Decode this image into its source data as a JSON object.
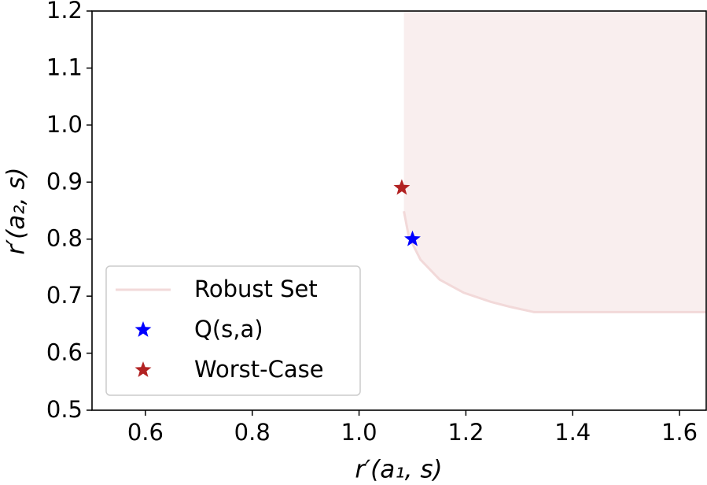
{
  "chart_data": {
    "type": "scatter",
    "xlabel": "r′(a₁, s)",
    "ylabel": "r′(a₂, s)",
    "xlim": [
      0.5,
      1.65
    ],
    "ylim": [
      0.5,
      1.2
    ],
    "xticks": [
      0.6,
      0.8,
      {
        "value": 1,
        "label": "1.0"
      },
      1.2,
      1.4,
      1.6
    ],
    "yticks": [
      0.5,
      0.6,
      0.7,
      0.8,
      0.9,
      {
        "value": 1,
        "label": "1.0"
      },
      1.1,
      1.2
    ],
    "legend": "lower left",
    "series": [
      {
        "name": "Robust Set",
        "kind": "line",
        "color": "#f2d9d9",
        "fill": "#f9eeee",
        "x": [
          1.084,
          1.093,
          1.115,
          1.151,
          1.196,
          1.247,
          1.284,
          1.328,
          1.65
        ],
        "y": [
          0.849,
          0.805,
          0.764,
          0.729,
          0.706,
          0.69,
          0.681,
          0.672,
          0.672
        ]
      },
      {
        "name": "Q(s,a)",
        "kind": "star",
        "color": "#0000ff",
        "x": [
          1.1
        ],
        "y": [
          0.8
        ]
      },
      {
        "name": "Worst-Case",
        "kind": "star",
        "color": "#b22222",
        "x": [
          1.08
        ],
        "y": [
          0.89
        ]
      }
    ]
  }
}
